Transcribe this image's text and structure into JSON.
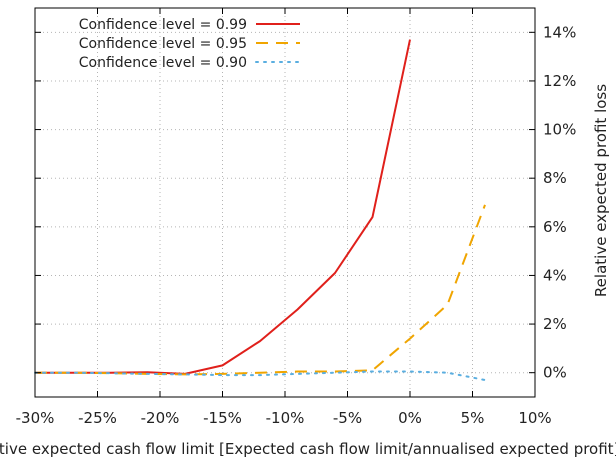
{
  "chart_data": {
    "type": "line",
    "xlabel": "Relative expected cash flow limit [Expected cash flow limit/annualised expected profit]",
    "ylabel": "Relative expected profit loss",
    "xlim": [
      -30,
      10
    ],
    "ylim": [
      -1,
      15
    ],
    "x_ticks": [
      -30,
      -25,
      -20,
      -15,
      -10,
      -5,
      0,
      5,
      10
    ],
    "x_tick_labels": [
      "-30%",
      "-25%",
      "-20%",
      "-15%",
      "-10%",
      "-5%",
      "0%",
      "5%",
      "10%"
    ],
    "y_ticks": [
      0,
      2,
      4,
      6,
      8,
      10,
      12,
      14
    ],
    "y_tick_labels": [
      "0%",
      "2%",
      "4%",
      "6%",
      "8%",
      "10%",
      "12%",
      "14%"
    ],
    "y_axis_side": "right",
    "grid": true,
    "legend_position": "top-left",
    "series": [
      {
        "name": "Confidence level = 0.99",
        "color": "#e0201b",
        "style": "solid",
        "x": [
          -30,
          -27,
          -24,
          -21,
          -18,
          -15,
          -12,
          -9,
          -6,
          -3,
          0
        ],
        "y": [
          0.0,
          0.0,
          0.0,
          0.02,
          -0.05,
          0.3,
          1.3,
          2.6,
          4.1,
          6.4,
          13.7
        ]
      },
      {
        "name": "Confidence level = 0.95",
        "color": "#f0a500",
        "style": "dashed",
        "x": [
          -30,
          -27,
          -24,
          -21,
          -18,
          -15,
          -12,
          -9,
          -6,
          -3,
          0,
          3,
          6
        ],
        "y": [
          0.0,
          0.0,
          -0.02,
          -0.05,
          -0.07,
          -0.05,
          0.0,
          0.05,
          0.05,
          0.1,
          1.4,
          2.8,
          6.9
        ]
      },
      {
        "name": "Confidence level = 0.90",
        "color": "#5aaee0",
        "style": "dotted",
        "x": [
          -30,
          -27,
          -24,
          -21,
          -18,
          -15,
          -12,
          -9,
          -6,
          -3,
          0,
          3,
          6
        ],
        "y": [
          0.0,
          0.0,
          -0.02,
          -0.05,
          -0.07,
          -0.1,
          -0.1,
          -0.05,
          0.0,
          0.05,
          0.05,
          0.0,
          -0.3
        ]
      }
    ]
  }
}
